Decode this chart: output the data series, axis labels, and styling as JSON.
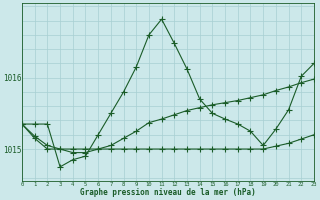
{
  "title": "Graphe pression niveau de la mer (hPa)",
  "bg_color": "#cce8ea",
  "grid_color": "#a8cfd2",
  "line_color": "#1a5c28",
  "x_ticks": [
    0,
    1,
    2,
    3,
    4,
    5,
    6,
    7,
    8,
    9,
    10,
    11,
    12,
    13,
    14,
    15,
    16,
    17,
    18,
    19,
    20,
    21,
    22,
    23
  ],
  "y_ticks": [
    1015,
    1016
  ],
  "ylim": [
    1014.55,
    1017.05
  ],
  "xlim": [
    0,
    23
  ],
  "line1_y": [
    1015.35,
    1015.35,
    1015.35,
    1014.75,
    1014.85,
    1014.9,
    1015.2,
    1015.5,
    1015.8,
    1016.15,
    1016.6,
    1016.82,
    1016.48,
    1016.12,
    1015.7,
    1015.5,
    1015.42,
    1015.35,
    1015.25,
    1015.05,
    1015.28,
    1015.55,
    1016.02,
    1016.2
  ],
  "line2_y": [
    1015.35,
    1015.18,
    1015.05,
    1015.0,
    1014.95,
    1014.95,
    1015.0,
    1015.05,
    1015.15,
    1015.25,
    1015.37,
    1015.42,
    1015.48,
    1015.54,
    1015.58,
    1015.62,
    1015.65,
    1015.68,
    1015.72,
    1015.76,
    1015.82,
    1015.87,
    1015.93,
    1015.98
  ],
  "line3_y": [
    1015.35,
    1015.15,
    1015.0,
    1015.0,
    1015.0,
    1015.0,
    1015.0,
    1015.0,
    1015.0,
    1015.0,
    1015.0,
    1015.0,
    1015.0,
    1015.0,
    1015.0,
    1015.0,
    1015.0,
    1015.0,
    1015.0,
    1015.0,
    1015.04,
    1015.08,
    1015.14,
    1015.2
  ]
}
